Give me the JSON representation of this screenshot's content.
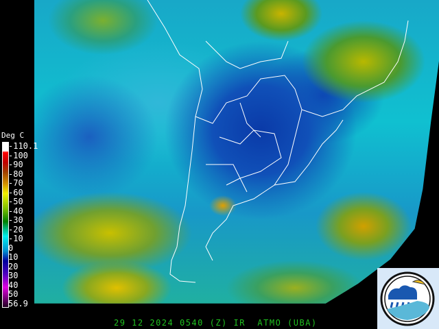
{
  "legend": {
    "title": "Deg C",
    "ticks": [
      "-110.1",
      "-100",
      "-90",
      "-80",
      "-70",
      "-60",
      "-50",
      "-40",
      "-30",
      "-20",
      "-10",
      "0",
      "10",
      "20",
      "30",
      "40",
      "50",
      "56.9"
    ]
  },
  "caption": "29 12 2024 0540 (Z) IR  ATMO (UBA)",
  "logo": {
    "label": "ATMO (UBA)"
  },
  "colors": {
    "caption": "#20c020",
    "background": "#000000"
  }
}
